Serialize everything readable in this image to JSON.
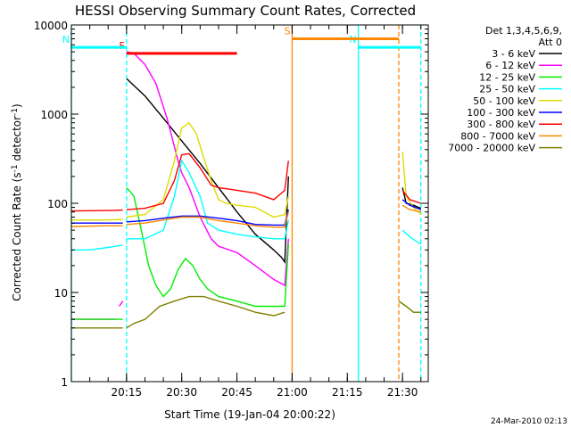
{
  "chart_data": {
    "type": "line",
    "title": "HESSI Observing Summary Count Rates, Corrected",
    "xlabel": "Start Time (19-Jan-04 20:00:22)",
    "ylabel": "Corrected Count Rate (s",
    "ylabel_sup": "-1",
    "ylabel_mid": " detector",
    "ylabel_sup2": "-1",
    "ylabel_end": ")",
    "footer": "24-Mar-2010 02:13",
    "y_scale": "log",
    "ylim": [
      1,
      10000
    ],
    "xlim": [
      0,
      97
    ],
    "x_ticks": [
      {
        "x": 15,
        "label": "20:15"
      },
      {
        "x": 30,
        "label": "20:30"
      },
      {
        "x": 45,
        "label": "20:45"
      },
      {
        "x": 60,
        "label": "21:00"
      },
      {
        "x": 75,
        "label": "21:15"
      },
      {
        "x": 90,
        "label": "21:30"
      }
    ],
    "y_ticks": [
      {
        "y": 1,
        "label": "1"
      },
      {
        "y": 10,
        "label": "10"
      },
      {
        "y": 100,
        "label": "100"
      },
      {
        "y": 1000,
        "label": "1000"
      },
      {
        "y": 10000,
        "label": "10000"
      }
    ],
    "legend_header": [
      "Det 1,3,4,5,6,9,",
      "Att 0"
    ],
    "legend_position": "right",
    "series": [
      {
        "name": "3 - 6 keV",
        "color": "#000000",
        "segments": [
          [
            [
              15,
              2500
            ],
            [
              20,
              1600
            ],
            [
              25,
              900
            ],
            [
              30,
              500
            ],
            [
              35,
              280
            ],
            [
              40,
              150
            ],
            [
              45,
              80
            ],
            [
              50,
              45
            ],
            [
              55,
              30
            ],
            [
              57,
              25
            ],
            [
              58,
              22
            ],
            [
              59,
              200
            ]
          ],
          [
            [
              90,
              150
            ],
            [
              91,
              100
            ],
            [
              93,
              95
            ],
            [
              95,
              88
            ]
          ]
        ]
      },
      {
        "name": "6 - 12 keV",
        "color": "#ff00ff",
        "segments": [
          [
            [
              0,
              5
            ],
            [
              12,
              5
            ]
          ],
          [
            [
              13,
              7
            ],
            [
              14,
              8
            ]
          ],
          [
            [
              15,
              5000
            ],
            [
              17,
              4800
            ],
            [
              20,
              3600
            ],
            [
              23,
              2200
            ],
            [
              26,
              900
            ],
            [
              29,
              300
            ],
            [
              30,
              220
            ],
            [
              32,
              150
            ],
            [
              35,
              70
            ],
            [
              38,
              40
            ],
            [
              40,
              33
            ],
            [
              45,
              28
            ],
            [
              50,
              20
            ],
            [
              55,
              14
            ],
            [
              58,
              12
            ],
            [
              59,
              40
            ]
          ]
        ]
      },
      {
        "name": "12 - 25 keV",
        "color": "#00ee00",
        "segments": [
          [
            [
              0,
              5
            ],
            [
              14,
              5
            ]
          ],
          [
            [
              15,
              150
            ],
            [
              17,
              120
            ],
            [
              19,
              50
            ],
            [
              21,
              20
            ],
            [
              23,
              12
            ],
            [
              25,
              9
            ],
            [
              27,
              11
            ],
            [
              29,
              18
            ],
            [
              31,
              24
            ],
            [
              33,
              20
            ],
            [
              35,
              14
            ],
            [
              37,
              11
            ],
            [
              40,
              9
            ],
            [
              45,
              8
            ],
            [
              50,
              7
            ],
            [
              55,
              7
            ],
            [
              58,
              7
            ],
            [
              59,
              35
            ]
          ],
          [
            [
              89,
              8
            ],
            [
              91,
              7
            ],
            [
              93,
              6
            ],
            [
              95,
              6
            ]
          ]
        ]
      },
      {
        "name": "25 - 50 keV",
        "color": "#00ffff",
        "segments": [
          [
            [
              0,
              30
            ],
            [
              5,
              30
            ],
            [
              10,
              32
            ],
            [
              14,
              34
            ]
          ],
          [
            [
              15,
              40
            ],
            [
              20,
              40
            ],
            [
              25,
              50
            ],
            [
              28,
              120
            ],
            [
              30,
              300
            ],
            [
              32,
              220
            ],
            [
              35,
              120
            ],
            [
              37,
              60
            ],
            [
              40,
              50
            ],
            [
              45,
              45
            ],
            [
              50,
              42
            ],
            [
              55,
              40
            ],
            [
              58,
              40
            ],
            [
              59,
              65
            ]
          ],
          [
            [
              90,
              50
            ],
            [
              92,
              42
            ],
            [
              94,
              37
            ],
            [
              95,
              35
            ]
          ]
        ]
      },
      {
        "name": "50 - 100 keV",
        "color": "#dddd00",
        "segments": [
          [
            [
              0,
              65
            ],
            [
              10,
              65
            ],
            [
              14,
              66
            ]
          ],
          [
            [
              15,
              70
            ],
            [
              20,
              75
            ],
            [
              25,
              110
            ],
            [
              28,
              300
            ],
            [
              30,
              700
            ],
            [
              32,
              800
            ],
            [
              34,
              600
            ],
            [
              36,
              320
            ],
            [
              38,
              180
            ],
            [
              40,
              110
            ],
            [
              42,
              100
            ],
            [
              45,
              95
            ],
            [
              50,
              90
            ],
            [
              55,
              70
            ],
            [
              58,
              75
            ],
            [
              59,
              120
            ]
          ],
          [
            [
              90,
              380
            ],
            [
              91,
              120
            ],
            [
              93,
              90
            ],
            [
              95,
              75
            ]
          ]
        ]
      },
      {
        "name": "100 - 300 keV",
        "color": "#0000ff",
        "segments": [
          [
            [
              0,
              60
            ],
            [
              10,
              60
            ],
            [
              14,
              60
            ]
          ],
          [
            [
              15,
              62
            ],
            [
              20,
              64
            ],
            [
              25,
              68
            ],
            [
              30,
              72
            ],
            [
              35,
              72
            ],
            [
              40,
              68
            ],
            [
              45,
              64
            ],
            [
              50,
              58
            ],
            [
              55,
              57
            ],
            [
              58,
              57
            ],
            [
              59,
              85
            ]
          ],
          [
            [
              90,
              110
            ],
            [
              92,
              95
            ],
            [
              95,
              85
            ]
          ]
        ]
      },
      {
        "name": "300 - 800 keV",
        "color": "#ff0000",
        "segments": [
          [
            [
              0,
              82
            ],
            [
              10,
              83
            ],
            [
              14,
              84
            ]
          ],
          [
            [
              15,
              85
            ],
            [
              20,
              88
            ],
            [
              25,
              100
            ],
            [
              28,
              180
            ],
            [
              30,
              350
            ],
            [
              32,
              360
            ],
            [
              35,
              250
            ],
            [
              38,
              160
            ],
            [
              40,
              150
            ],
            [
              45,
              140
            ],
            [
              50,
              130
            ],
            [
              55,
              110
            ],
            [
              58,
              140
            ],
            [
              59,
              300
            ]
          ],
          [
            [
              90,
              140
            ],
            [
              92,
              110
            ],
            [
              95,
              100
            ]
          ]
        ]
      },
      {
        "name": "800 - 7000 keV",
        "color": "#ff8800",
        "segments": [
          [
            [
              0,
              55
            ],
            [
              10,
              56
            ],
            [
              14,
              56
            ]
          ],
          [
            [
              15,
              58
            ],
            [
              20,
              60
            ],
            [
              25,
              65
            ],
            [
              30,
              70
            ],
            [
              35,
              70
            ],
            [
              40,
              64
            ],
            [
              45,
              60
            ],
            [
              50,
              56
            ],
            [
              55,
              54
            ],
            [
              58,
              54
            ],
            [
              59,
              80
            ]
          ],
          [
            [
              90,
              95
            ],
            [
              92,
              85
            ],
            [
              95,
              80
            ]
          ]
        ]
      },
      {
        "name": "7000 - 20000 keV",
        "color": "#808000",
        "segments": [
          [
            [
              0,
              4
            ],
            [
              5,
              4
            ],
            [
              10,
              4
            ],
            [
              14,
              4
            ]
          ],
          [
            [
              15,
              4
            ],
            [
              17,
              4.5
            ],
            [
              20,
              5
            ],
            [
              24,
              7
            ],
            [
              28,
              8
            ],
            [
              32,
              9
            ],
            [
              36,
              9
            ],
            [
              40,
              8
            ],
            [
              45,
              7
            ],
            [
              50,
              6
            ],
            [
              55,
              5.5
            ],
            [
              58,
              6
            ]
          ],
          [
            [
              89,
              8
            ],
            [
              91,
              7
            ],
            [
              93,
              6
            ],
            [
              95,
              6
            ]
          ]
        ]
      }
    ],
    "annotations": [
      {
        "label": "F",
        "color": "#ff0000",
        "x_start": 15,
        "x_end": 45,
        "y": 4800
      },
      {
        "label": "N",
        "color": "#00ffff",
        "x_start": 0,
        "x_end": 15,
        "y": 5600
      },
      {
        "label": "N",
        "color": "#00ffff",
        "x_start": 78,
        "x_end": 95,
        "y": 5600
      },
      {
        "label": "S",
        "color": "#ff8800",
        "x_start": 60,
        "x_end": 89,
        "y": 7000
      }
    ],
    "vlines": [
      {
        "x": 0,
        "color": "#00ffff",
        "style": "solid"
      },
      {
        "x": 15,
        "color": "#00ffff",
        "style": "dashed"
      },
      {
        "x": 60,
        "color": "#ff8800",
        "style": "solid"
      },
      {
        "x": 78,
        "color": "#00ffff",
        "style": "solid"
      },
      {
        "x": 89,
        "color": "#ff8800",
        "style": "dashed"
      },
      {
        "x": 95,
        "color": "#00ffff",
        "style": "dashed"
      }
    ]
  }
}
